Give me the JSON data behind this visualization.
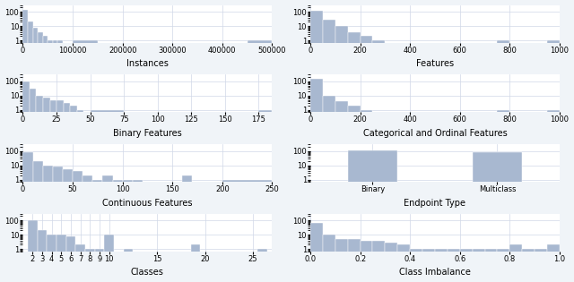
{
  "subplots": [
    {
      "title": "Instances",
      "xlabel": "Instances",
      "type": "hist",
      "xlim": [
        0,
        500000
      ],
      "xticks": [
        0,
        100000,
        200000,
        300000,
        400000,
        500000
      ],
      "bar_edges": [
        0,
        10000,
        20000,
        30000,
        40000,
        50000,
        60000,
        70000,
        80000,
        90000,
        100000,
        150000,
        200000,
        250000,
        300000,
        350000,
        400000,
        450000,
        500000
      ],
      "bar_counts": [
        130,
        20,
        8,
        4,
        2,
        1,
        1,
        1,
        0,
        0,
        1,
        0,
        0,
        0,
        0,
        0,
        0,
        1
      ]
    },
    {
      "title": "Features",
      "xlabel": "Features",
      "type": "hist",
      "xlim": [
        0,
        1000
      ],
      "xticks": [
        0,
        200,
        400,
        600,
        800,
        1000
      ],
      "bar_edges": [
        0,
        50,
        100,
        150,
        200,
        250,
        300,
        350,
        400,
        450,
        500,
        550,
        600,
        650,
        700,
        750,
        800,
        850,
        900,
        950,
        1000
      ],
      "bar_counts": [
        120,
        30,
        10,
        4,
        2,
        1,
        0,
        0,
        0,
        0,
        0,
        0,
        0,
        0,
        0,
        1,
        0,
        0,
        0,
        1
      ]
    },
    {
      "title": "Binary Features",
      "xlabel": "Binary Features",
      "type": "hist",
      "xlim": [
        0,
        185
      ],
      "xticks": [
        0,
        25,
        50,
        75,
        100,
        125,
        150,
        175
      ],
      "bar_edges": [
        0,
        5,
        10,
        15,
        20,
        25,
        30,
        35,
        40,
        45,
        50,
        75,
        100,
        125,
        150,
        175,
        185
      ],
      "bar_counts": [
        100,
        30,
        10,
        7,
        5,
        5,
        3,
        2,
        1,
        0,
        1,
        0,
        0,
        0,
        0,
        1
      ]
    },
    {
      "title": "Categorical and Ordinal Features",
      "xlabel": "Categorical and Ordinal Features",
      "type": "hist",
      "xlim": [
        0,
        1000
      ],
      "xticks": [
        0,
        200,
        400,
        600,
        800,
        1000
      ],
      "bar_edges": [
        0,
        50,
        100,
        150,
        200,
        250,
        300,
        350,
        400,
        450,
        500,
        550,
        600,
        650,
        700,
        750,
        800,
        850,
        900,
        950,
        1000
      ],
      "bar_counts": [
        150,
        10,
        4,
        2,
        1,
        0,
        0,
        0,
        0,
        0,
        0,
        0,
        0,
        0,
        0,
        1,
        0,
        0,
        0,
        1
      ]
    },
    {
      "title": "Continuous Features",
      "xlabel": "Continuous Features",
      "type": "hist",
      "xlim": [
        0,
        250
      ],
      "xticks": [
        0,
        50,
        100,
        150,
        200,
        250
      ],
      "bar_edges": [
        0,
        10,
        20,
        30,
        40,
        50,
        60,
        70,
        80,
        90,
        100,
        110,
        120,
        130,
        140,
        150,
        160,
        170,
        180,
        200,
        250
      ],
      "bar_counts": [
        80,
        20,
        10,
        8,
        5,
        4,
        2,
        1,
        2,
        1,
        1,
        1,
        0,
        0,
        0,
        0,
        2,
        0,
        0,
        1
      ]
    },
    {
      "title": "Endpoint Type",
      "xlabel": "Endpoint Type",
      "type": "bar",
      "categories": [
        "Binary",
        "Multiclass"
      ],
      "values": [
        106,
        82
      ]
    },
    {
      "title": "Classes",
      "xlabel": "Classes",
      "type": "hist",
      "xlim": [
        1,
        27
      ],
      "xticks": [
        2,
        3,
        4,
        5,
        6,
        7,
        8,
        9,
        10,
        15,
        20,
        25
      ],
      "bar_edges": [
        1.5,
        2.5,
        3.5,
        4.5,
        5.5,
        6.5,
        7.5,
        8.5,
        9.5,
        10.5,
        11.5,
        12.5,
        13.5,
        14.5,
        15.5,
        16.5,
        17.5,
        18.5,
        19.5,
        20.5,
        21.5,
        22.5,
        23.5,
        24.5,
        25.5,
        26.5,
        27.5
      ],
      "bar_counts": [
        100,
        20,
        10,
        10,
        8,
        2,
        1,
        1,
        11,
        0,
        1,
        0,
        0,
        0,
        0,
        0,
        0,
        2,
        0,
        0,
        0,
        0,
        0,
        0,
        1,
        0
      ]
    },
    {
      "title": "Class Imbalance",
      "xlabel": "Class Imbalance",
      "type": "hist",
      "xlim": [
        0.0,
        1.0
      ],
      "xticks": [
        0.0,
        0.2,
        0.4,
        0.6,
        0.8,
        1.0
      ],
      "bar_edges": [
        0.0,
        0.05,
        0.1,
        0.15,
        0.2,
        0.25,
        0.3,
        0.35,
        0.4,
        0.45,
        0.5,
        0.55,
        0.6,
        0.65,
        0.7,
        0.75,
        0.8,
        0.85,
        0.9,
        0.95,
        1.0
      ],
      "bar_counts": [
        70,
        10,
        5,
        5,
        4,
        4,
        3,
        2,
        1,
        1,
        1,
        1,
        1,
        1,
        1,
        1,
        2,
        1,
        1,
        2
      ]
    }
  ],
  "bar_color": "#a8b8d0",
  "bar_edge_color": "white",
  "grid_color": "#d0d8e8",
  "background_color": "#f0f4f8",
  "axes_background": "white",
  "ylim": [
    0.7,
    300
  ],
  "yticks": [
    1,
    10,
    100
  ],
  "title_fontsize": 7,
  "tick_fontsize": 6
}
